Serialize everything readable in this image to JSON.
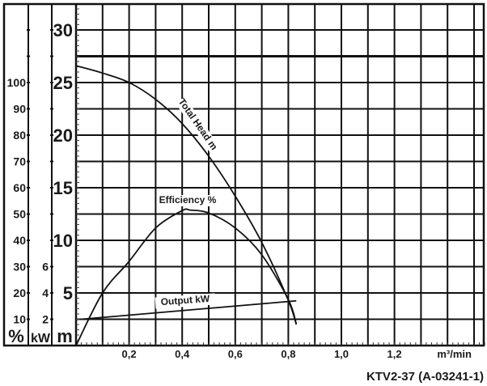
{
  "chart_data": {
    "type": "line",
    "title": "",
    "xlabel": "m³/min",
    "x_ticks": [
      "0,2",
      "0,4",
      "0,6",
      "0,8",
      "1,0",
      "1,2"
    ],
    "x_tick_values": [
      0.2,
      0.4,
      0.6,
      0.8,
      1.0,
      1.2
    ],
    "xlim": [
      0,
      1.55
    ],
    "grid": true,
    "axes": [
      {
        "unit": "m",
        "ticks": [
          "5",
          "10",
          "15",
          "20",
          "25",
          "30"
        ],
        "tick_values": [
          5,
          10,
          15,
          20,
          25,
          30
        ],
        "ylim": [
          0,
          32.5
        ]
      },
      {
        "unit": "kW",
        "ticks": [
          "2",
          "4",
          "6"
        ],
        "tick_values": [
          2,
          4,
          6
        ],
        "ylim": [
          0,
          26
        ]
      },
      {
        "unit": "%",
        "ticks": [
          "10",
          "20",
          "30",
          "40",
          "50",
          "60",
          "70",
          "80",
          "90",
          "100"
        ],
        "tick_values": [
          10,
          20,
          30,
          40,
          50,
          60,
          70,
          80,
          90,
          100
        ],
        "ylim": [
          0,
          130
        ]
      }
    ],
    "series": [
      {
        "name": "Total Head m",
        "axis": "m",
        "x": [
          0,
          0.1,
          0.2,
          0.3,
          0.4,
          0.5,
          0.6,
          0.7,
          0.8,
          0.83
        ],
        "y": [
          26.6,
          25.9,
          25.0,
          23.4,
          21.1,
          18.0,
          14.2,
          9.8,
          4.3,
          2.0
        ]
      },
      {
        "name": "Efficiency %",
        "axis": "%",
        "x": [
          0,
          0.1,
          0.2,
          0.3,
          0.4,
          0.43,
          0.5,
          0.6,
          0.7,
          0.8,
          0.83
        ],
        "y": [
          0,
          20,
          32,
          44.7,
          51.3,
          51.5,
          50.4,
          44.7,
          34.5,
          17.5,
          8.3
        ]
      },
      {
        "name": "Output kW",
        "axis": "kW",
        "x": [
          0.02,
          0.83
        ],
        "y": [
          2.0,
          3.4
        ]
      }
    ],
    "footer": "KTV2-37 (A-03241-1)"
  }
}
